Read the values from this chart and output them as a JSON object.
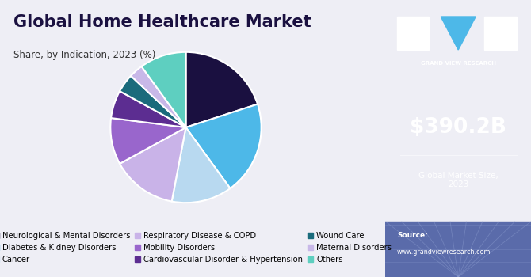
{
  "title": "Global Home Healthcare Market",
  "subtitle": "Share, by Indication, 2023 (%)",
  "slices": [
    {
      "label": "Neurological & Mental Disorders",
      "value": 20,
      "color": "#1a1040"
    },
    {
      "label": "Diabetes & Kidney Disorders",
      "value": 20,
      "color": "#4db8e8"
    },
    {
      "label": "Cancer",
      "value": 13,
      "color": "#b8d9f0"
    },
    {
      "label": "Respiratory Disease & COPD",
      "value": 14,
      "color": "#c9b3e8"
    },
    {
      "label": "Mobility Disorders",
      "value": 10,
      "color": "#9966cc"
    },
    {
      "label": "Cardiovascular Disorder & Hypertension",
      "value": 6,
      "color": "#5c2d91"
    },
    {
      "label": "Wound Care",
      "value": 4,
      "color": "#1a6b7c"
    },
    {
      "label": "Maternal Disorders",
      "value": 3,
      "color": "#c8b8e8"
    },
    {
      "label": "Others",
      "value": 10,
      "color": "#5ecfc0"
    }
  ],
  "right_panel_bg": "#3b1f6b",
  "market_size_value": "$390.2B",
  "market_size_label": "Global Market Size,\n2023",
  "source_label": "Source:",
  "source_url": "www.grandviewresearch.com",
  "left_bg": "#eeeef5",
  "legend_font_size": 7.2,
  "title_font_size": 15,
  "subtitle_font_size": 8.5
}
